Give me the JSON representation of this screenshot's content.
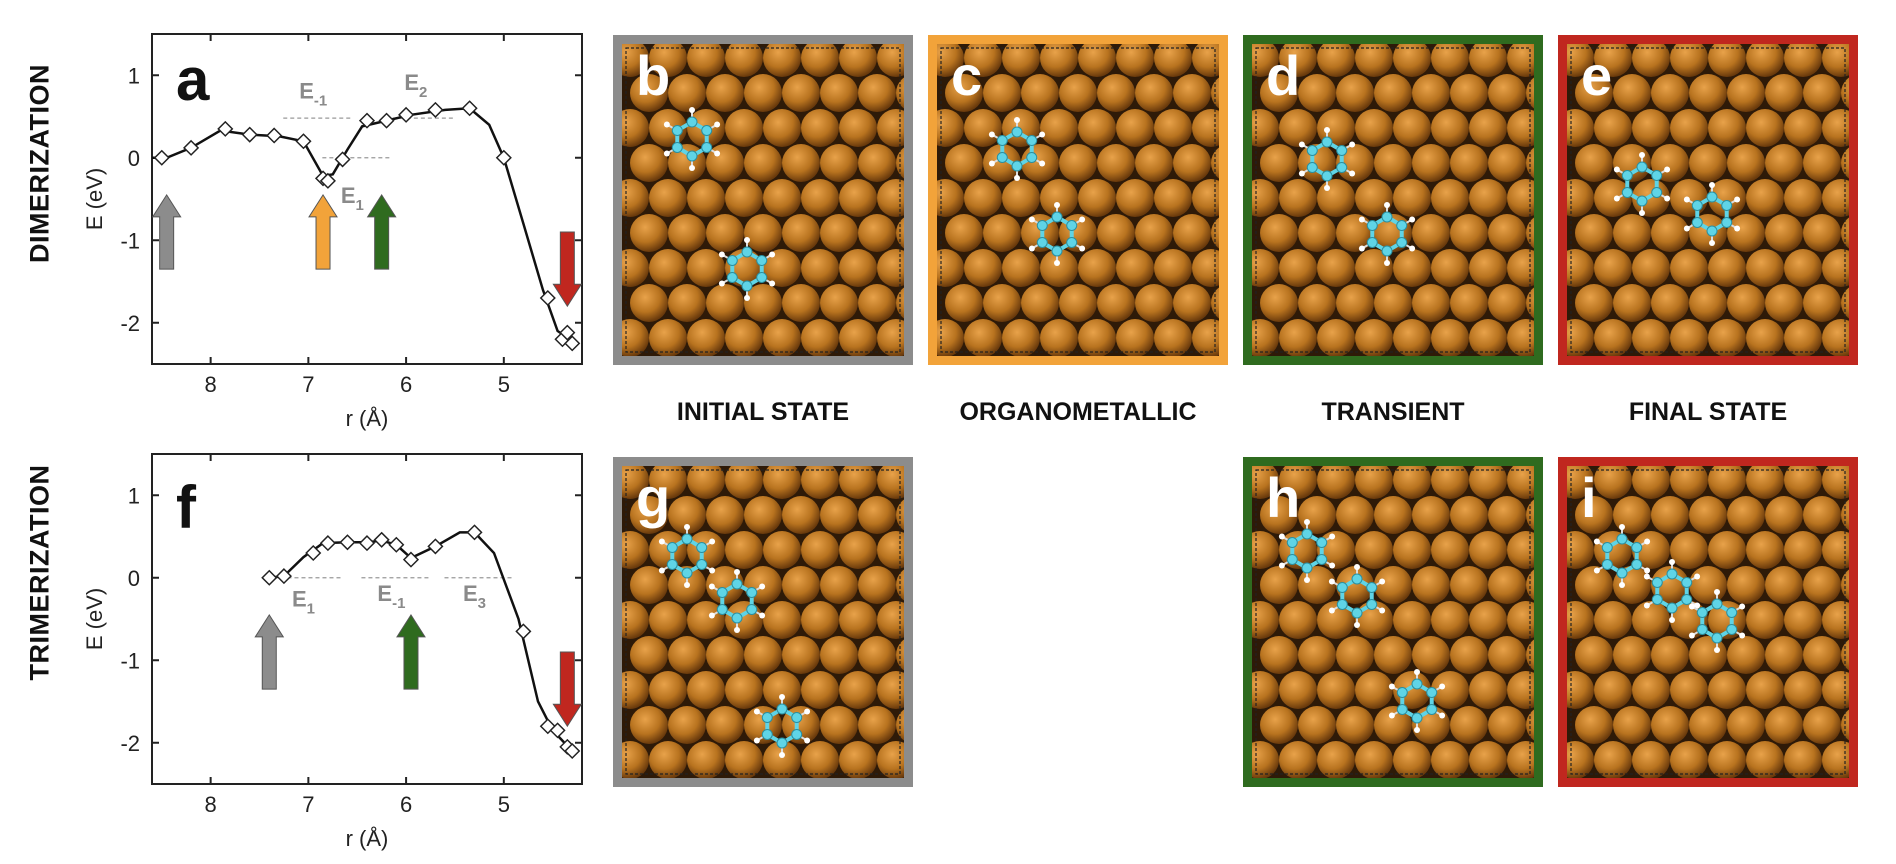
{
  "rows": [
    {
      "label": "DIMERIZATION"
    },
    {
      "label": "TRIMERIZATION"
    }
  ],
  "state_labels": [
    "INITIAL STATE",
    "ORGANOMETALLIC",
    "TRANSIENT",
    "FINAL STATE"
  ],
  "colors": {
    "initial": "#8c8c8c",
    "organometallic": "#f2a33a",
    "transient": "#2f6b1f",
    "final": "#c0271f",
    "substrate": "#b8731f",
    "carbon": "#5fd4e6",
    "hydrogen": "#ffffff"
  },
  "panels": [
    {
      "letter": "b",
      "state": "initial"
    },
    {
      "letter": "c",
      "state": "organometallic"
    },
    {
      "letter": "d",
      "state": "transient"
    },
    {
      "letter": "e",
      "state": "final"
    },
    {
      "letter": "g",
      "state": "initial"
    },
    {
      "letter": "h",
      "state": "transient"
    },
    {
      "letter": "i",
      "state": "final"
    }
  ],
  "chart_data": [
    {
      "panel": "a",
      "type": "line",
      "xlabel": "r (Å)",
      "ylabel": "E (eV)",
      "xlim": [
        8.6,
        4.2
      ],
      "ylim": [
        -2.5,
        1.5
      ],
      "x_axis_reversed": true,
      "xticks": [
        8,
        7,
        6,
        5
      ],
      "yticks": [
        1,
        0,
        -1,
        -2
      ],
      "markers": [
        [
          8.5,
          0.0
        ],
        [
          8.2,
          0.12
        ],
        [
          7.85,
          0.35
        ],
        [
          7.6,
          0.28
        ],
        [
          7.35,
          0.27
        ],
        [
          7.05,
          0.2
        ],
        [
          6.85,
          -0.25
        ],
        [
          6.8,
          -0.28
        ],
        [
          6.65,
          -0.02
        ],
        [
          6.4,
          0.45
        ],
        [
          6.2,
          0.45
        ],
        [
          6.0,
          0.52
        ],
        [
          5.7,
          0.58
        ],
        [
          5.35,
          0.6
        ],
        [
          5.0,
          0.0
        ],
        [
          4.55,
          -1.7
        ],
        [
          4.4,
          -2.2
        ],
        [
          4.35,
          -2.12
        ],
        [
          4.3,
          -2.25
        ]
      ],
      "curve": [
        [
          8.6,
          0.0
        ],
        [
          8.45,
          0.0
        ],
        [
          8.2,
          0.12
        ],
        [
          7.9,
          0.33
        ],
        [
          7.6,
          0.28
        ],
        [
          7.3,
          0.26
        ],
        [
          7.05,
          0.2
        ],
        [
          6.85,
          -0.22
        ],
        [
          6.75,
          -0.2
        ],
        [
          6.6,
          0.1
        ],
        [
          6.45,
          0.38
        ],
        [
          6.2,
          0.45
        ],
        [
          5.95,
          0.52
        ],
        [
          5.6,
          0.58
        ],
        [
          5.35,
          0.6
        ],
        [
          5.15,
          0.4
        ],
        [
          5.0,
          0.0
        ],
        [
          4.8,
          -0.8
        ],
        [
          4.6,
          -1.6
        ],
        [
          4.45,
          -2.1
        ],
        [
          4.3,
          -2.22
        ]
      ],
      "annotations": [
        {
          "text": "E",
          "sub": "-1",
          "x": 6.95,
          "y": 0.72
        },
        {
          "text": "E",
          "sub": "2",
          "x": 5.9,
          "y": 0.82
        },
        {
          "text": "E",
          "sub": "1",
          "x": 6.55,
          "y": -0.55
        }
      ],
      "arrows": [
        {
          "x": 8.45,
          "state": "initial",
          "dir": "up"
        },
        {
          "x": 6.85,
          "state": "organometallic",
          "dir": "up"
        },
        {
          "x": 6.25,
          "state": "transient",
          "dir": "up"
        },
        {
          "x": 4.35,
          "state": "final",
          "dir": "down"
        }
      ]
    },
    {
      "panel": "f",
      "type": "line",
      "xlabel": "r (Å)",
      "ylabel": "E (eV)",
      "xlim": [
        8.6,
        4.2
      ],
      "ylim": [
        -2.5,
        1.5
      ],
      "x_axis_reversed": true,
      "xticks": [
        8,
        7,
        6,
        5
      ],
      "yticks": [
        1,
        0,
        -1,
        -2
      ],
      "markers": [
        [
          7.4,
          0.0
        ],
        [
          7.25,
          0.02
        ],
        [
          6.95,
          0.3
        ],
        [
          6.8,
          0.42
        ],
        [
          6.6,
          0.43
        ],
        [
          6.4,
          0.42
        ],
        [
          6.25,
          0.46
        ],
        [
          6.1,
          0.4
        ],
        [
          5.95,
          0.22
        ],
        [
          5.7,
          0.38
        ],
        [
          5.3,
          0.55
        ],
        [
          4.8,
          -0.65
        ],
        [
          4.55,
          -1.8
        ],
        [
          4.45,
          -1.85
        ],
        [
          4.35,
          -2.05
        ],
        [
          4.3,
          -2.1
        ]
      ],
      "curve": [
        [
          7.4,
          0.0
        ],
        [
          7.25,
          0.02
        ],
        [
          7.05,
          0.25
        ],
        [
          6.85,
          0.42
        ],
        [
          6.6,
          0.43
        ],
        [
          6.4,
          0.43
        ],
        [
          6.25,
          0.45
        ],
        [
          6.1,
          0.4
        ],
        [
          5.95,
          0.24
        ],
        [
          5.7,
          0.38
        ],
        [
          5.45,
          0.55
        ],
        [
          5.3,
          0.55
        ],
        [
          5.1,
          0.3
        ],
        [
          4.85,
          -0.5
        ],
        [
          4.65,
          -1.5
        ],
        [
          4.5,
          -1.85
        ],
        [
          4.3,
          -2.1
        ]
      ],
      "annotations": [
        {
          "text": "E",
          "sub": "1",
          "x": 7.05,
          "y": -0.35
        },
        {
          "text": "E",
          "sub": "-1",
          "x": 6.15,
          "y": -0.28
        },
        {
          "text": "E",
          "sub": "3",
          "x": 5.3,
          "y": -0.28
        }
      ],
      "arrows": [
        {
          "x": 7.4,
          "state": "initial",
          "dir": "up"
        },
        {
          "x": 5.95,
          "state": "transient",
          "dir": "up"
        },
        {
          "x": 4.35,
          "state": "final",
          "dir": "down"
        }
      ]
    }
  ]
}
